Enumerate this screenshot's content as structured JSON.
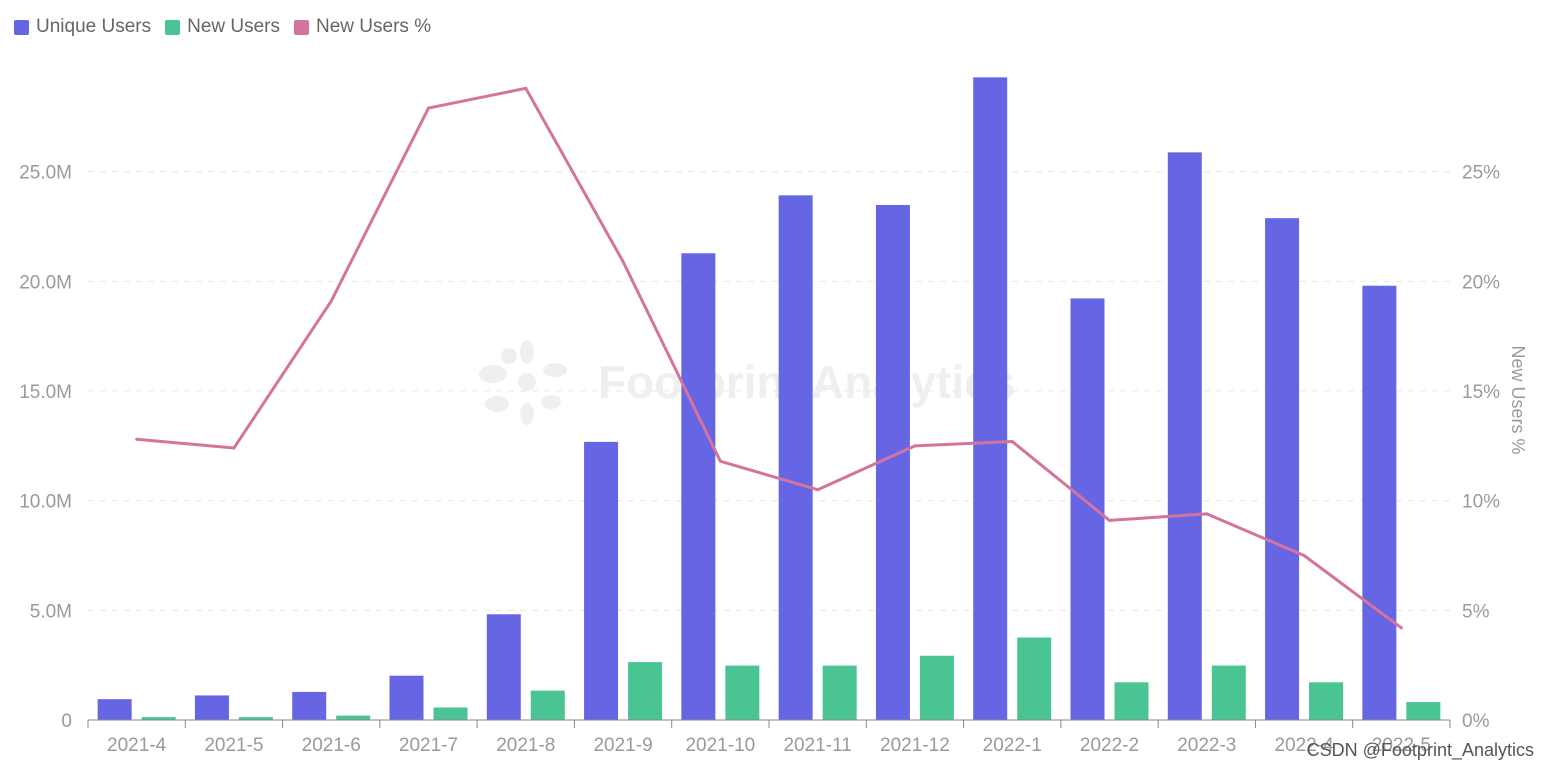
{
  "chart_data": {
    "type": "bar",
    "categories": [
      "2021-4",
      "2021-5",
      "2021-6",
      "2021-7",
      "2021-8",
      "2021-9",
      "2021-10",
      "2021-11",
      "2021-12",
      "2022-1",
      "2022-2",
      "2022-3",
      "2022-4",
      "2022-5"
    ],
    "series": [
      {
        "name": "Unique Users",
        "kind": "bar",
        "axis": "left",
        "color": "#6665e3",
        "values": [
          0.95,
          1.12,
          1.28,
          2.02,
          4.82,
          12.68,
          21.28,
          23.92,
          23.48,
          29.3,
          19.22,
          25.88,
          22.88,
          19.8
        ]
      },
      {
        "name": "New Users",
        "kind": "bar",
        "axis": "left",
        "color": "#4bc493",
        "values": [
          0.13,
          0.13,
          0.2,
          0.57,
          1.34,
          2.64,
          2.48,
          2.48,
          2.93,
          3.76,
          1.72,
          2.48,
          1.72,
          0.82
        ]
      },
      {
        "name": "New Users %",
        "kind": "line",
        "axis": "right",
        "color": "#d4749e",
        "values": [
          12.8,
          12.4,
          19.1,
          27.9,
          28.8,
          20.9,
          11.8,
          10.5,
          12.5,
          12.7,
          9.1,
          9.4,
          7.5,
          4.2
        ]
      }
    ],
    "left_axis": {
      "unit": "M",
      "ylim": [
        0,
        30
      ],
      "ticks": [
        0,
        5,
        10,
        15,
        20,
        25
      ],
      "tick_labels": [
        "0",
        "5.0M",
        "10.0M",
        "15.0M",
        "20.0M",
        "25.0M"
      ]
    },
    "right_axis": {
      "label": "New Users %",
      "ylim": [
        0,
        30
      ],
      "ticks": [
        0,
        5,
        10,
        15,
        20,
        25
      ],
      "tick_labels": [
        "0%",
        "5%",
        "10%",
        "15%",
        "20%",
        "25%"
      ]
    },
    "legend_position": "top-left",
    "grid": true,
    "title": "",
    "xlabel": ""
  },
  "legend": [
    {
      "label": "Unique Users",
      "color": "#6665e3"
    },
    {
      "label": "New Users",
      "color": "#4bc493"
    },
    {
      "label": "New Users %",
      "color": "#d4749e"
    }
  ],
  "watermark_text": "Footprint Analytics",
  "credit_text": "CSDN @Footprint_Analytics"
}
